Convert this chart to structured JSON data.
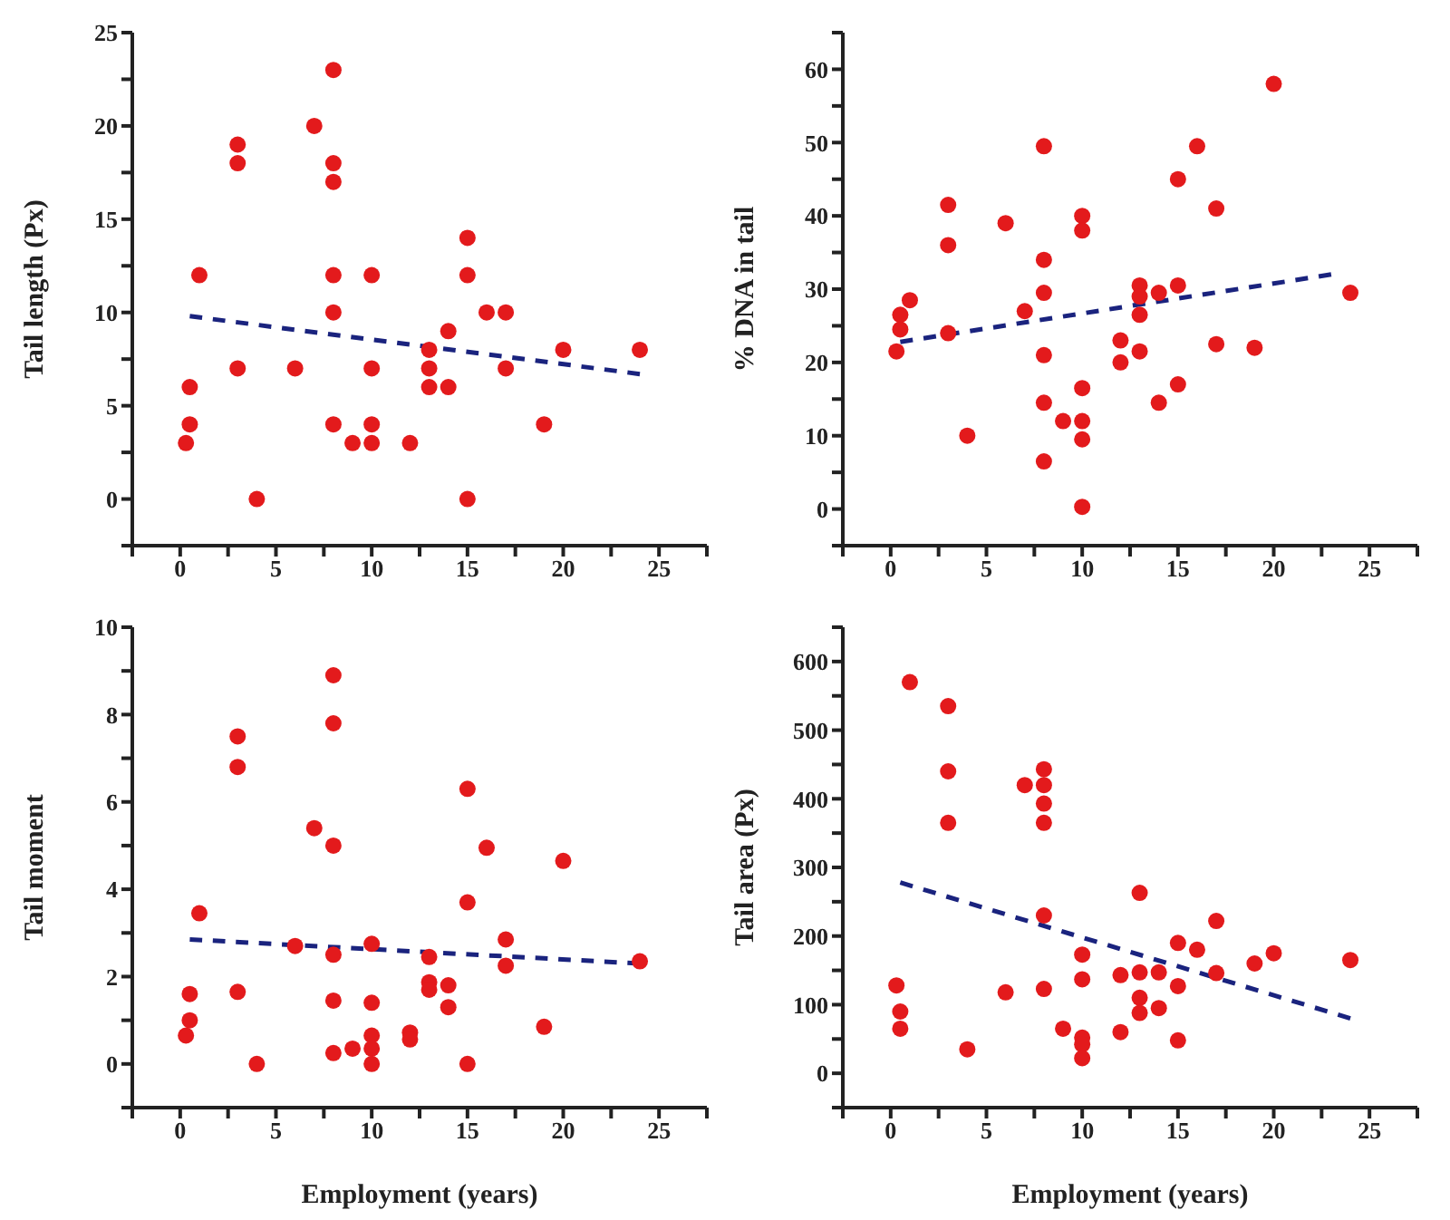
{
  "chart_data": [
    {
      "type": "scatter",
      "ylabel": "Tail length (Px)",
      "xlim": [
        -2.5,
        27.5
      ],
      "xticks": [
        {
          "value": -2.5,
          "label": null
        },
        0,
        {
          "value": 2.5,
          "label": null
        },
        5,
        {
          "value": 7.5,
          "label": null
        },
        10,
        {
          "value": 12.5,
          "label": null
        },
        15,
        {
          "value": 17.5,
          "label": null
        },
        20,
        {
          "value": 22.5,
          "label": null
        },
        25,
        {
          "value": 27.5,
          "label": null
        }
      ],
      "ylim": [
        -2.5,
        25
      ],
      "yticks": [
        {
          "value": -2.5,
          "label": null
        },
        0,
        {
          "value": 2.5,
          "label": null
        },
        5,
        {
          "value": 7.5,
          "label": null
        },
        10,
        {
          "value": 12.5,
          "label": null
        },
        15,
        {
          "value": 17.5,
          "label": null
        },
        20,
        {
          "value": 22.5,
          "label": null
        },
        25
      ],
      "grid": false,
      "legend": false,
      "marker": "circle",
      "series": [
        {
          "color": "#e31a1c",
          "x": [
            0.3,
            0.5,
            0.5,
            1,
            3,
            3,
            3,
            4,
            6,
            7,
            8,
            8,
            8,
            8,
            8,
            8,
            9,
            10,
            10,
            10,
            10,
            12,
            13,
            13,
            13,
            14,
            14,
            15,
            15,
            15,
            16,
            17,
            17,
            19,
            20,
            24
          ],
          "values": [
            3,
            6,
            4,
            12,
            19,
            18,
            7,
            0,
            7,
            20,
            23,
            18,
            17,
            12,
            10,
            4,
            3,
            12,
            7,
            4,
            3,
            3,
            8,
            7,
            6,
            9,
            6,
            14,
            12,
            0,
            10,
            10,
            7,
            4,
            8,
            8
          ]
        },
        {
          "type": "line",
          "color": "#1a237e",
          "line_style": "dashed",
          "marker": "none",
          "x": [
            0.5,
            24
          ],
          "values": [
            9.8,
            6.7
          ]
        }
      ]
    },
    {
      "type": "scatter",
      "ylabel": "% DNA in tail",
      "xlim": [
        -2.5,
        27.5
      ],
      "xticks": [
        {
          "value": -2.5,
          "label": null
        },
        0,
        {
          "value": 2.5,
          "label": null
        },
        5,
        {
          "value": 7.5,
          "label": null
        },
        10,
        {
          "value": 12.5,
          "label": null
        },
        15,
        {
          "value": 17.5,
          "label": null
        },
        20,
        {
          "value": 22.5,
          "label": null
        },
        25,
        {
          "value": 27.5,
          "label": null
        }
      ],
      "ylim": [
        -5,
        65
      ],
      "yticks": [
        {
          "value": -5,
          "label": null
        },
        0,
        {
          "value": 5,
          "label": null
        },
        10,
        {
          "value": 15,
          "label": null
        },
        20,
        {
          "value": 25,
          "label": null
        },
        30,
        {
          "value": 35,
          "label": null
        },
        40,
        {
          "value": 45,
          "label": null
        },
        50,
        {
          "value": 55,
          "label": null
        },
        60,
        {
          "value": 65,
          "label": null
        }
      ],
      "grid": false,
      "legend": false,
      "marker": "circle",
      "series": [
        {
          "color": "#e31a1c",
          "x": [
            0.3,
            0.5,
            0.5,
            1,
            3,
            3,
            3,
            4,
            6,
            7,
            8,
            8,
            8,
            8,
            8,
            8,
            9,
            10,
            10,
            10,
            10,
            10,
            10,
            12,
            12,
            13,
            13,
            13,
            13,
            14,
            14,
            15,
            15,
            15,
            16,
            17,
            17,
            19,
            20,
            24
          ],
          "values": [
            21.5,
            26.5,
            24.5,
            28.5,
            41.5,
            36,
            24,
            10,
            39,
            27,
            49.5,
            34,
            29.5,
            21,
            14.5,
            6.5,
            12,
            40,
            38,
            16.5,
            12,
            9.5,
            0.3,
            23,
            20,
            30.5,
            29,
            26.5,
            21.5,
            29.5,
            14.5,
            45,
            30.5,
            17,
            49.5,
            41,
            22.5,
            22,
            58,
            29.5
          ]
        },
        {
          "type": "line",
          "color": "#1a237e",
          "line_style": "dashed",
          "marker": "none",
          "x": [
            0.5,
            23
          ],
          "values": [
            22.8,
            32
          ]
        }
      ]
    },
    {
      "type": "scatter",
      "ylabel": "Tail moment",
      "xlabel": "Employment (years)",
      "xlim": [
        -2.5,
        27.5
      ],
      "xticks": [
        {
          "value": -2.5,
          "label": null
        },
        0,
        {
          "value": 2.5,
          "label": null
        },
        5,
        {
          "value": 7.5,
          "label": null
        },
        10,
        {
          "value": 12.5,
          "label": null
        },
        15,
        {
          "value": 17.5,
          "label": null
        },
        20,
        {
          "value": 22.5,
          "label": null
        },
        25,
        {
          "value": 27.5,
          "label": null
        }
      ],
      "ylim": [
        -1,
        10
      ],
      "yticks": [
        {
          "value": -1,
          "label": null
        },
        0,
        {
          "value": 1,
          "label": null
        },
        2,
        {
          "value": 3,
          "label": null
        },
        4,
        {
          "value": 5,
          "label": null
        },
        6,
        {
          "value": 7,
          "label": null
        },
        8,
        {
          "value": 9,
          "label": null
        },
        10
      ],
      "grid": false,
      "legend": false,
      "marker": "circle",
      "series": [
        {
          "color": "#e31a1c",
          "x": [
            0.3,
            0.5,
            0.5,
            1,
            3,
            3,
            3,
            4,
            6,
            7,
            8,
            8,
            8,
            8,
            8,
            8,
            9,
            10,
            10,
            10,
            10,
            10,
            12,
            12,
            13,
            13,
            13,
            14,
            14,
            15,
            15,
            15,
            16,
            17,
            17,
            19,
            20,
            24
          ],
          "values": [
            0.65,
            1.6,
            1.0,
            3.45,
            7.5,
            6.8,
            1.65,
            0,
            2.7,
            5.4,
            8.9,
            7.8,
            5.0,
            2.5,
            1.45,
            0.25,
            0.35,
            2.75,
            1.4,
            0.65,
            0.35,
            0,
            0.72,
            0.56,
            2.45,
            1.87,
            1.7,
            1.8,
            1.3,
            6.3,
            3.7,
            0,
            4.95,
            2.85,
            2.25,
            0.85,
            4.65,
            2.35
          ]
        },
        {
          "type": "line",
          "color": "#1a237e",
          "line_style": "dashed",
          "marker": "none",
          "x": [
            0.5,
            24
          ],
          "values": [
            2.85,
            2.3
          ]
        }
      ]
    },
    {
      "type": "scatter",
      "ylabel": "Tail area (Px)",
      "xlabel": "Employment (years)",
      "xlim": [
        -2.5,
        27.5
      ],
      "xticks": [
        {
          "value": -2.5,
          "label": null
        },
        0,
        {
          "value": 2.5,
          "label": null
        },
        5,
        {
          "value": 7.5,
          "label": null
        },
        10,
        {
          "value": 12.5,
          "label": null
        },
        15,
        {
          "value": 17.5,
          "label": null
        },
        20,
        {
          "value": 22.5,
          "label": null
        },
        25,
        {
          "value": 27.5,
          "label": null
        }
      ],
      "ylim": [
        -50,
        650
      ],
      "yticks": [
        {
          "value": -50,
          "label": null
        },
        0,
        {
          "value": 50,
          "label": null
        },
        100,
        {
          "value": 150,
          "label": null
        },
        200,
        {
          "value": 250,
          "label": null
        },
        300,
        {
          "value": 350,
          "label": null
        },
        400,
        {
          "value": 450,
          "label": null
        },
        500,
        {
          "value": 550,
          "label": null
        },
        600,
        {
          "value": 650,
          "label": null
        }
      ],
      "grid": false,
      "legend": false,
      "marker": "circle",
      "series": [
        {
          "color": "#e31a1c",
          "x": [
            0.3,
            0.5,
            0.5,
            1,
            3,
            3,
            3,
            4,
            6,
            7,
            8,
            8,
            8,
            8,
            8,
            8,
            9,
            10,
            10,
            10,
            10,
            10,
            12,
            12,
            13,
            13,
            13,
            13,
            14,
            14,
            15,
            15,
            15,
            16,
            17,
            17,
            19,
            20,
            24
          ],
          "values": [
            128,
            90,
            65,
            570,
            535,
            440,
            365,
            35,
            118,
            420,
            443,
            420,
            393,
            365,
            230,
            123,
            65,
            173,
            137,
            52,
            42,
            22,
            143,
            60,
            263,
            147,
            110,
            88,
            147,
            95,
            190,
            127,
            48,
            180,
            222,
            146,
            160,
            175,
            165
          ]
        },
        {
          "type": "line",
          "color": "#1a237e",
          "line_style": "dashed",
          "marker": "none",
          "x": [
            0.5,
            24
          ],
          "values": [
            278,
            80
          ]
        }
      ]
    }
  ]
}
